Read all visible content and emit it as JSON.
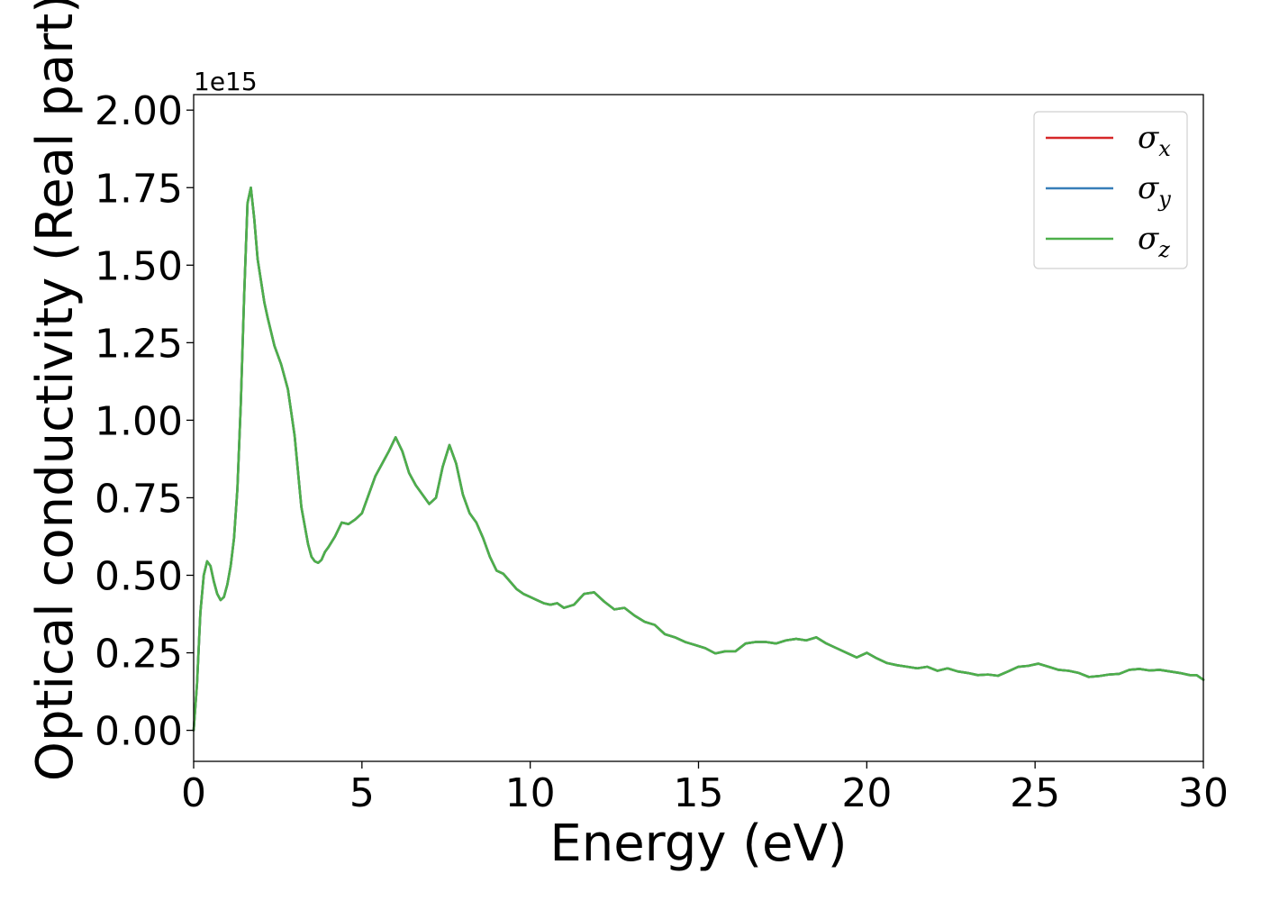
{
  "chart_data": {
    "type": "line",
    "xlabel": "Energy (eV)",
    "ylabel": "Optical conductivity (Real part)",
    "y_offset_label": "1e15",
    "xlim": [
      0,
      30
    ],
    "ylim": [
      -0.1,
      2.05
    ],
    "x_ticks": [
      0,
      5,
      10,
      15,
      20,
      25,
      30
    ],
    "x_tick_labels": [
      "0",
      "5",
      "10",
      "15",
      "20",
      "25",
      "30"
    ],
    "y_ticks": [
      0.0,
      0.25,
      0.5,
      0.75,
      1.0,
      1.25,
      1.5,
      1.75,
      2.0
    ],
    "y_tick_labels": [
      "0.00",
      "0.25",
      "0.50",
      "0.75",
      "1.00",
      "1.25",
      "1.50",
      "1.75",
      "2.00"
    ],
    "grid": false,
    "legend_position": "top-right",
    "x": [
      0,
      0.1,
      0.2,
      0.3,
      0.4,
      0.5,
      0.6,
      0.7,
      0.8,
      0.9,
      1.0,
      1.1,
      1.2,
      1.3,
      1.4,
      1.5,
      1.6,
      1.7,
      1.8,
      1.9,
      2.0,
      2.1,
      2.2,
      2.4,
      2.6,
      2.8,
      3.0,
      3.2,
      3.4,
      3.5,
      3.6,
      3.7,
      3.8,
      3.9,
      4.0,
      4.2,
      4.4,
      4.6,
      4.8,
      5.0,
      5.2,
      5.4,
      5.6,
      5.8,
      6.0,
      6.2,
      6.4,
      6.6,
      6.8,
      7.0,
      7.2,
      7.4,
      7.6,
      7.8,
      8.0,
      8.2,
      8.4,
      8.6,
      8.8,
      9.0,
      9.2,
      9.4,
      9.6,
      9.8,
      10.0,
      10.2,
      10.4,
      10.6,
      10.8,
      11.0,
      11.3,
      11.6,
      11.9,
      12.2,
      12.5,
      12.8,
      13.1,
      13.4,
      13.7,
      14.0,
      14.3,
      14.6,
      14.9,
      15.2,
      15.5,
      15.8,
      16.1,
      16.4,
      16.7,
      17.0,
      17.3,
      17.6,
      17.9,
      18.2,
      18.5,
      18.8,
      19.1,
      19.4,
      19.7,
      20.0,
      20.3,
      20.6,
      20.9,
      21.2,
      21.5,
      21.8,
      22.1,
      22.4,
      22.7,
      23.0,
      23.3,
      23.6,
      23.9,
      24.2,
      24.5,
      24.8,
      25.1,
      25.4,
      25.7,
      26.0,
      26.3,
      26.6,
      26.9,
      27.2,
      27.5,
      27.8,
      28.1,
      28.4,
      28.7,
      29.0,
      29.3,
      29.6,
      29.8,
      30.0
    ],
    "series": [
      {
        "name": "σx",
        "color": "#d62728",
        "values": [
          0.0,
          0.15,
          0.38,
          0.5,
          0.545,
          0.53,
          0.48,
          0.44,
          0.42,
          0.43,
          0.47,
          0.53,
          0.62,
          0.78,
          1.05,
          1.4,
          1.7,
          1.75,
          1.65,
          1.52,
          1.45,
          1.38,
          1.33,
          1.24,
          1.18,
          1.1,
          0.95,
          0.72,
          0.6,
          0.56,
          0.545,
          0.54,
          0.55,
          0.575,
          0.59,
          0.625,
          0.67,
          0.665,
          0.68,
          0.7,
          0.76,
          0.82,
          0.86,
          0.9,
          0.945,
          0.9,
          0.83,
          0.79,
          0.76,
          0.73,
          0.75,
          0.85,
          0.92,
          0.86,
          0.76,
          0.7,
          0.67,
          0.62,
          0.56,
          0.515,
          0.505,
          0.48,
          0.455,
          0.44,
          0.43,
          0.42,
          0.41,
          0.405,
          0.41,
          0.395,
          0.405,
          0.44,
          0.445,
          0.415,
          0.39,
          0.395,
          0.37,
          0.35,
          0.34,
          0.31,
          0.3,
          0.285,
          0.275,
          0.265,
          0.248,
          0.255,
          0.255,
          0.28,
          0.285,
          0.285,
          0.28,
          0.29,
          0.295,
          0.29,
          0.3,
          0.28,
          0.265,
          0.25,
          0.235,
          0.25,
          0.232,
          0.217,
          0.21,
          0.205,
          0.2,
          0.205,
          0.192,
          0.2,
          0.19,
          0.185,
          0.178,
          0.18,
          0.176,
          0.19,
          0.205,
          0.208,
          0.215,
          0.205,
          0.195,
          0.192,
          0.185,
          0.172,
          0.175,
          0.18,
          0.182,
          0.195,
          0.198,
          0.193,
          0.195,
          0.19,
          0.185,
          0.178,
          0.178,
          0.163
        ]
      },
      {
        "name": "σy",
        "color": "#377eb8",
        "values": [
          0.0,
          0.15,
          0.38,
          0.5,
          0.545,
          0.53,
          0.48,
          0.44,
          0.42,
          0.43,
          0.47,
          0.53,
          0.62,
          0.78,
          1.05,
          1.4,
          1.7,
          1.75,
          1.65,
          1.52,
          1.45,
          1.38,
          1.33,
          1.24,
          1.18,
          1.1,
          0.95,
          0.72,
          0.6,
          0.56,
          0.545,
          0.54,
          0.55,
          0.575,
          0.59,
          0.625,
          0.67,
          0.665,
          0.68,
          0.7,
          0.76,
          0.82,
          0.86,
          0.9,
          0.945,
          0.9,
          0.83,
          0.79,
          0.76,
          0.73,
          0.75,
          0.85,
          0.92,
          0.86,
          0.76,
          0.7,
          0.67,
          0.62,
          0.56,
          0.515,
          0.505,
          0.48,
          0.455,
          0.44,
          0.43,
          0.42,
          0.41,
          0.405,
          0.41,
          0.395,
          0.405,
          0.44,
          0.445,
          0.415,
          0.39,
          0.395,
          0.37,
          0.35,
          0.34,
          0.31,
          0.3,
          0.285,
          0.275,
          0.265,
          0.248,
          0.255,
          0.255,
          0.28,
          0.285,
          0.285,
          0.28,
          0.29,
          0.295,
          0.29,
          0.3,
          0.28,
          0.265,
          0.25,
          0.235,
          0.25,
          0.232,
          0.217,
          0.21,
          0.205,
          0.2,
          0.205,
          0.192,
          0.2,
          0.19,
          0.185,
          0.178,
          0.18,
          0.176,
          0.19,
          0.205,
          0.208,
          0.215,
          0.205,
          0.195,
          0.192,
          0.185,
          0.172,
          0.175,
          0.18,
          0.182,
          0.195,
          0.198,
          0.193,
          0.195,
          0.19,
          0.185,
          0.178,
          0.178,
          0.163
        ]
      },
      {
        "name": "σz",
        "color": "#4daf4a",
        "values": [
          0.0,
          0.15,
          0.38,
          0.5,
          0.545,
          0.53,
          0.48,
          0.44,
          0.42,
          0.43,
          0.47,
          0.53,
          0.62,
          0.78,
          1.05,
          1.4,
          1.7,
          1.75,
          1.65,
          1.52,
          1.45,
          1.38,
          1.33,
          1.24,
          1.18,
          1.1,
          0.95,
          0.72,
          0.6,
          0.56,
          0.545,
          0.54,
          0.55,
          0.575,
          0.59,
          0.625,
          0.67,
          0.665,
          0.68,
          0.7,
          0.76,
          0.82,
          0.86,
          0.9,
          0.945,
          0.9,
          0.83,
          0.79,
          0.76,
          0.73,
          0.75,
          0.85,
          0.92,
          0.86,
          0.76,
          0.7,
          0.67,
          0.62,
          0.56,
          0.515,
          0.505,
          0.48,
          0.455,
          0.44,
          0.43,
          0.42,
          0.41,
          0.405,
          0.41,
          0.395,
          0.405,
          0.44,
          0.445,
          0.415,
          0.39,
          0.395,
          0.37,
          0.35,
          0.34,
          0.31,
          0.3,
          0.285,
          0.275,
          0.265,
          0.248,
          0.255,
          0.255,
          0.28,
          0.285,
          0.285,
          0.28,
          0.29,
          0.295,
          0.29,
          0.3,
          0.28,
          0.265,
          0.25,
          0.235,
          0.25,
          0.232,
          0.217,
          0.21,
          0.205,
          0.2,
          0.205,
          0.192,
          0.2,
          0.19,
          0.185,
          0.178,
          0.18,
          0.176,
          0.19,
          0.205,
          0.208,
          0.215,
          0.205,
          0.195,
          0.192,
          0.185,
          0.172,
          0.175,
          0.18,
          0.182,
          0.195,
          0.198,
          0.193,
          0.195,
          0.19,
          0.185,
          0.178,
          0.178,
          0.163
        ]
      }
    ],
    "legend": [
      {
        "symbol": "σ",
        "subscript": "x",
        "color": "#d62728"
      },
      {
        "symbol": "σ",
        "subscript": "y",
        "color": "#377eb8"
      },
      {
        "symbol": "σ",
        "subscript": "z",
        "color": "#4daf4a"
      }
    ]
  }
}
